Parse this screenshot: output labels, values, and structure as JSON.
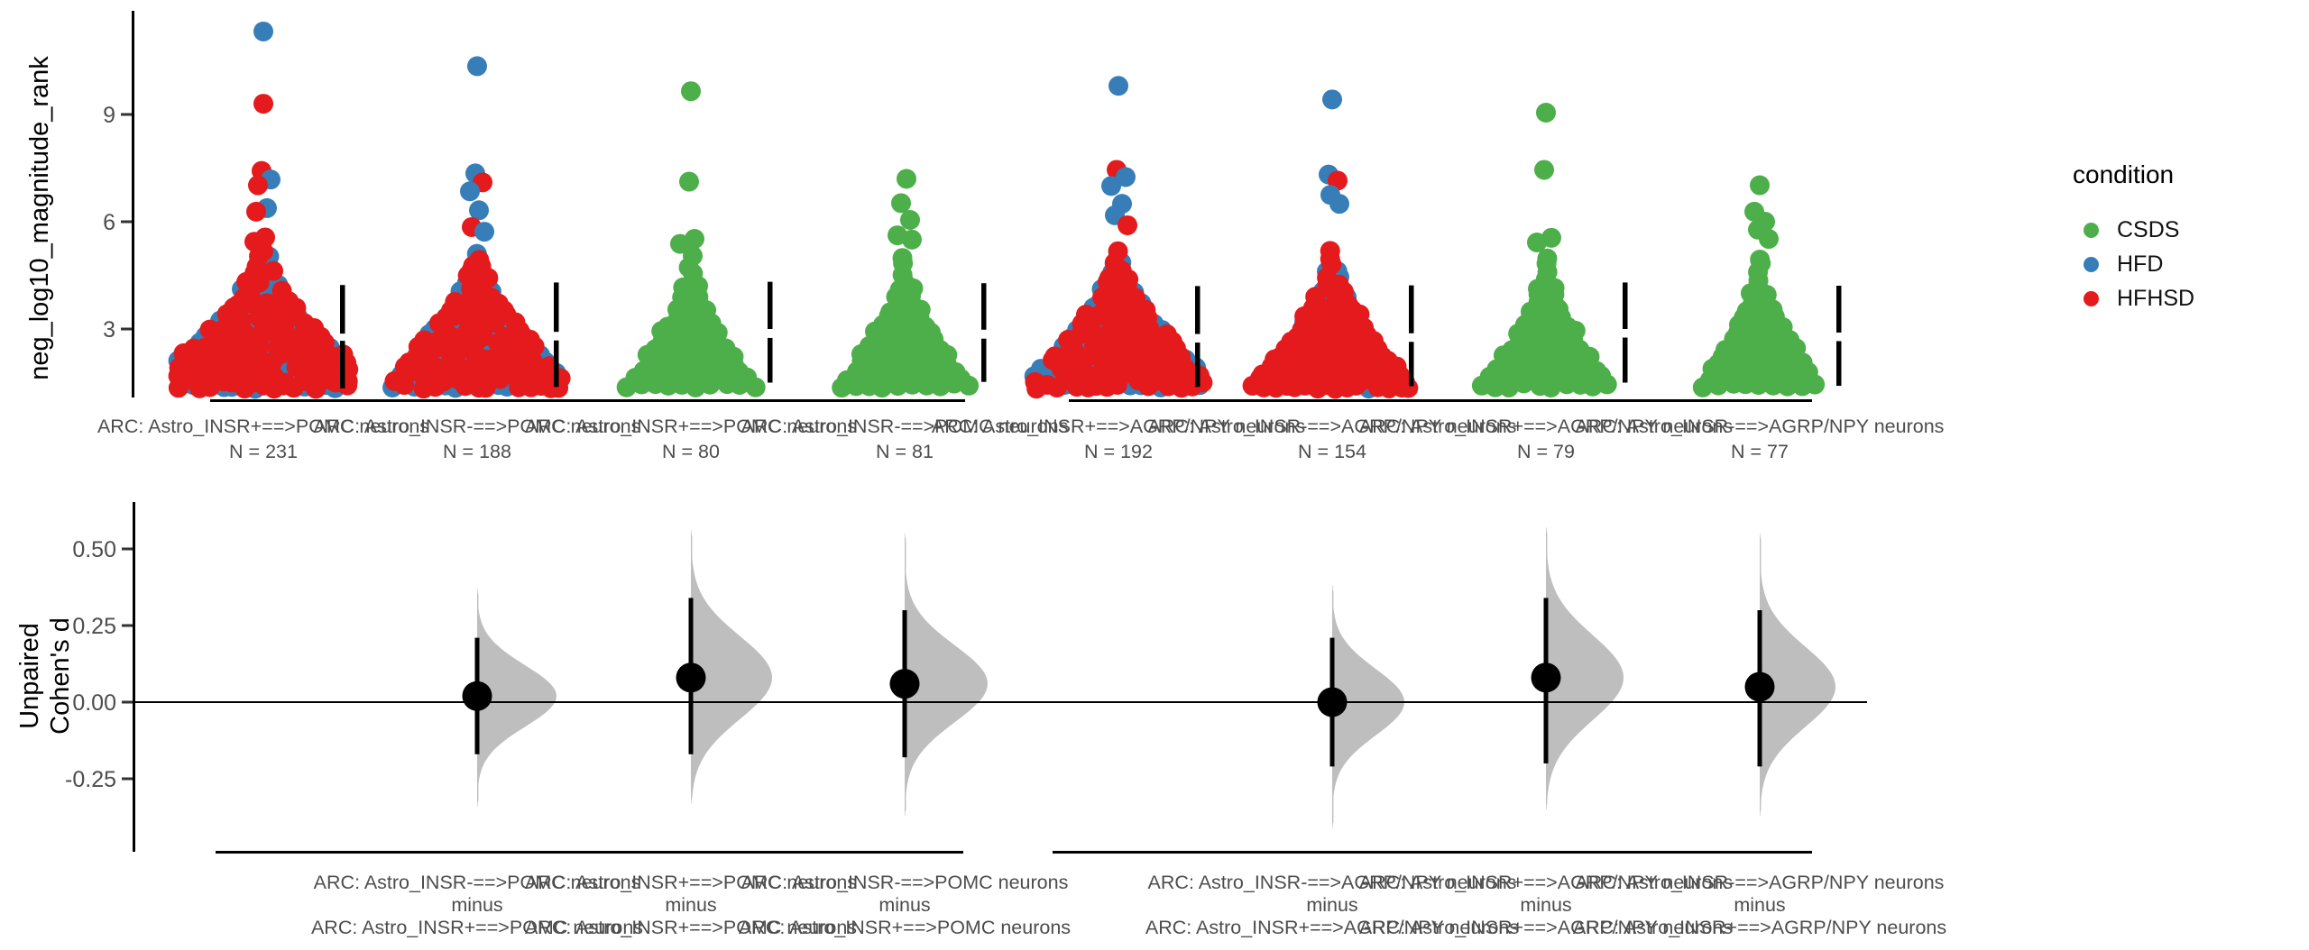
{
  "legend": {
    "title": "condition",
    "items": [
      {
        "label": "CSDS",
        "color": "#4daf4a"
      },
      {
        "label": "HFD",
        "color": "#377eb8"
      },
      {
        "label": "HFHSD",
        "color": "#e41a1c"
      }
    ]
  },
  "styles": {
    "axis_text": "#4d4d4d",
    "axis_line": "#000000",
    "violin_fill": "#bebebe",
    "effect_marker": "#000000"
  },
  "chart_data": [
    {
      "type": "scatter",
      "subtype": "beeswarm",
      "title": "",
      "ylabel": "neg_log10_magnitude_rank",
      "yticks": [
        {
          "label": "9",
          "value": 9
        },
        {
          "label": "6",
          "value": 6
        },
        {
          "label": "3",
          "value": 3
        }
      ],
      "ylim": [
        1.1,
        11.9
      ],
      "point_colors": {
        "CSDS": "#4daf4a",
        "HFD": "#377eb8",
        "HFHSD": "#e41a1c"
      },
      "groups": [
        {
          "label": "ARC: Astro_INSR+==>POMC neurons",
          "n_label": "N = 231",
          "n": 231,
          "conditions": [
            "HFD",
            "HFHSD"
          ],
          "dist": {
            "min": 1.38,
            "max": 5.35
          },
          "mean_sd_line": [
            4.23,
            2.87,
            2.67,
            1.34
          ],
          "outliers": [
            [
              11.32,
              "HFD",
              0
            ],
            [
              9.3,
              "HFHSD",
              0
            ],
            [
              7.42,
              "HFHSD",
              -2
            ],
            [
              7.18,
              "HFD",
              8
            ],
            [
              7.02,
              "HFHSD",
              -6
            ],
            [
              6.38,
              "HFD",
              4
            ],
            [
              6.28,
              "HFHSD",
              -8
            ],
            [
              5.56,
              "HFHSD",
              2
            ],
            [
              5.44,
              "HFHSD",
              -10
            ]
          ]
        },
        {
          "label": "ARC: Astro_INSR-==>POMC neurons",
          "n_label": "N = 188",
          "n": 188,
          "conditions": [
            "HFD",
            "HFHSD"
          ],
          "dist": {
            "min": 1.38,
            "max": 5.3
          },
          "mean_sd_line": [
            4.3,
            2.92,
            2.68,
            1.38
          ],
          "outliers": [
            [
              10.35,
              "HFD",
              0
            ],
            [
              7.35,
              "HFD",
              -2
            ],
            [
              7.1,
              "HFHSD",
              6
            ],
            [
              6.85,
              "HFD",
              -8
            ],
            [
              6.32,
              "HFD",
              2
            ],
            [
              5.85,
              "HFHSD",
              -6
            ],
            [
              5.72,
              "HFD",
              8
            ]
          ]
        },
        {
          "label": "ARC: Astro_INSR+==>POMC neurons",
          "n_label": "N = 80",
          "n": 80,
          "conditions": [
            "CSDS"
          ],
          "dist": {
            "min": 1.42,
            "max": 5.15
          },
          "mean_sd_line": [
            4.32,
            3.0,
            2.75,
            1.5
          ],
          "outliers": [
            [
              9.65,
              "CSDS",
              0
            ],
            [
              7.12,
              "CSDS",
              -2
            ],
            [
              5.52,
              "CSDS",
              4
            ],
            [
              5.38,
              "CSDS",
              -12
            ]
          ]
        },
        {
          "label": "ARC: Astro_INSR-==>POMC neurons",
          "n_label": "N = 81",
          "n": 81,
          "conditions": [
            "CSDS"
          ],
          "dist": {
            "min": 1.42,
            "max": 5.1
          },
          "mean_sd_line": [
            4.28,
            2.98,
            2.73,
            1.52
          ],
          "outliers": [
            [
              7.2,
              "CSDS",
              2
            ],
            [
              6.52,
              "CSDS",
              -4
            ],
            [
              6.05,
              "CSDS",
              6
            ],
            [
              5.62,
              "CSDS",
              -8
            ],
            [
              5.5,
              "CSDS",
              8
            ]
          ]
        },
        {
          "label": "ARC: Astro_INSR+==>AGRP/NPY neurons",
          "n_label": "N = 192",
          "n": 192,
          "conditions": [
            "HFD",
            "HFHSD"
          ],
          "dist": {
            "min": 1.38,
            "max": 5.3
          },
          "mean_sd_line": [
            4.2,
            2.86,
            2.62,
            1.38
          ],
          "outliers": [
            [
              9.8,
              "HFD",
              0
            ],
            [
              7.45,
              "HFHSD",
              -2
            ],
            [
              7.25,
              "HFD",
              8
            ],
            [
              7.0,
              "HFD",
              -8
            ],
            [
              6.5,
              "HFD",
              4
            ],
            [
              6.18,
              "HFD",
              -4
            ],
            [
              5.9,
              "HFHSD",
              10
            ]
          ]
        },
        {
          "label": "ARC: Astro_INSR-==>AGRP/NPY neurons",
          "n_label": "N = 154",
          "n": 154,
          "conditions": [
            "HFD",
            "HFHSD"
          ],
          "dist": {
            "min": 1.38,
            "max": 5.25
          },
          "mean_sd_line": [
            4.22,
            2.88,
            2.64,
            1.4
          ],
          "outliers": [
            [
              9.42,
              "HFD",
              0
            ],
            [
              7.32,
              "HFD",
              -4
            ],
            [
              7.15,
              "HFHSD",
              6
            ],
            [
              6.75,
              "HFD",
              -2
            ],
            [
              6.5,
              "HFD",
              8
            ]
          ]
        },
        {
          "label": "ARC: Astro_INSR+==>AGRP/NPY neurons",
          "n_label": "N = 79",
          "n": 79,
          "conditions": [
            "CSDS"
          ],
          "dist": {
            "min": 1.42,
            "max": 5.15
          },
          "mean_sd_line": [
            4.3,
            3.0,
            2.76,
            1.5
          ],
          "outliers": [
            [
              9.05,
              "CSDS",
              0
            ],
            [
              7.45,
              "CSDS",
              -2
            ],
            [
              5.55,
              "CSDS",
              6
            ],
            [
              5.42,
              "CSDS",
              -10
            ]
          ]
        },
        {
          "label": "ARC: Astro_INSR-==>AGRP/NPY neurons",
          "n_label": "N = 77",
          "n": 77,
          "conditions": [
            "CSDS"
          ],
          "dist": {
            "min": 1.42,
            "max": 5.1
          },
          "mean_sd_line": [
            4.21,
            2.9,
            2.66,
            1.41
          ],
          "outliers": [
            [
              7.02,
              "CSDS",
              0
            ],
            [
              6.28,
              "CSDS",
              -6
            ],
            [
              6.0,
              "CSDS",
              6
            ],
            [
              5.78,
              "CSDS",
              -2
            ],
            [
              5.52,
              "CSDS",
              10
            ]
          ]
        }
      ]
    },
    {
      "type": "violin",
      "subtype": "half-violin-bootstrap",
      "ylabel": [
        "Unpaired",
        "Cohen's d"
      ],
      "yticks": [
        {
          "label": "0.50",
          "value": 0.5
        },
        {
          "label": "0.25",
          "value": 0.25
        },
        {
          "label": "0.00",
          "value": 0.0
        },
        {
          "label": "-0.25",
          "value": -0.25
        }
      ],
      "ylim": [
        -0.48,
        0.62
      ],
      "zero_line": 0.0,
      "comparisons": [
        {
          "group": "ARC: Astro_INSR-==>POMC neurons",
          "minus_label": "minus",
          "control": "ARC: Astro_INSR+==>POMC neurons",
          "at_group": 2,
          "effect": 0.02,
          "ci": [
            -0.17,
            0.21
          ],
          "tails": [
            -0.34,
            0.37
          ],
          "sd": 0.1,
          "peak_w": 88
        },
        {
          "group": "ARC: Astro_INSR+==>POMC neurons",
          "minus_label": "minus",
          "control": "ARC: Astro_INSR+==>POMC neurons",
          "at_group": 3,
          "effect": 0.08,
          "ci": [
            -0.17,
            0.34
          ],
          "tails": [
            -0.33,
            0.56
          ],
          "sd": 0.135,
          "peak_w": 90
        },
        {
          "group": "ARC: Astro_INSR-==>POMC neurons",
          "minus_label": "minus",
          "control": "ARC: Astro_INSR+==>POMC neurons",
          "at_group": 4,
          "effect": 0.06,
          "ci": [
            -0.18,
            0.3
          ],
          "tails": [
            -0.37,
            0.55
          ],
          "sd": 0.125,
          "peak_w": 92
        },
        {
          "group": "ARC: Astro_INSR-==>AGRP/NPY neurons",
          "minus_label": "minus",
          "control": "ARC: Astro_INSR+==>AGRP/NPY neurons",
          "at_group": 6,
          "effect": 0.0,
          "ci": [
            -0.21,
            0.21
          ],
          "tails": [
            -0.41,
            0.38
          ],
          "sd": 0.108,
          "peak_w": 80
        },
        {
          "group": "ARC: Astro_INSR+==>AGRP/NPY neurons",
          "minus_label": "minus",
          "control": "ARC: Astro_INSR+==>AGRP/NPY neurons",
          "at_group": 7,
          "effect": 0.08,
          "ci": [
            -0.2,
            0.34
          ],
          "tails": [
            -0.35,
            0.57
          ],
          "sd": 0.138,
          "peak_w": 86
        },
        {
          "group": "ARC: Astro_INSR-==>AGRP/NPY neurons",
          "minus_label": "minus",
          "control": "ARC: Astro_INSR+==>AGRP/NPY neurons",
          "at_group": 8,
          "effect": 0.05,
          "ci": [
            -0.21,
            0.3
          ],
          "tails": [
            -0.37,
            0.55
          ],
          "sd": 0.13,
          "peak_w": 84
        }
      ]
    }
  ]
}
